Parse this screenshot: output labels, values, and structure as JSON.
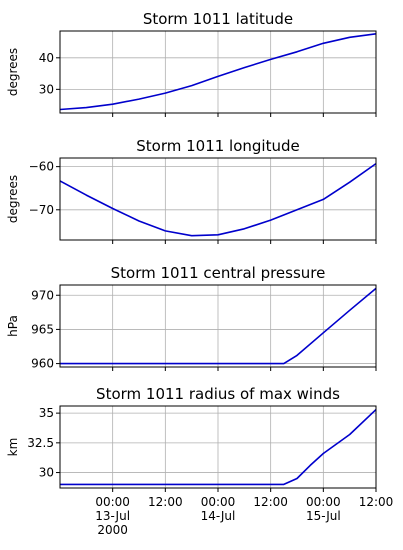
{
  "chart_data": [
    {
      "type": "line",
      "title": "Storm 1011 latitude",
      "ylabel": "degrees",
      "xlim": [
        "2000-07-12 12:00",
        "2000-07-15 12:00"
      ],
      "ylim": [
        22.5,
        48.5
      ],
      "yticks": [
        30,
        40
      ],
      "series": [
        {
          "color": "#0000cc",
          "x": [
            "2000-07-12 12:00",
            "2000-07-12 18:00",
            "2000-07-13 00:00",
            "2000-07-13 06:00",
            "2000-07-13 12:00",
            "2000-07-13 18:00",
            "2000-07-14 00:00",
            "2000-07-14 06:00",
            "2000-07-14 12:00",
            "2000-07-14 18:00",
            "2000-07-15 00:00",
            "2000-07-15 06:00",
            "2000-07-15 12:00"
          ],
          "y": [
            23.6,
            24.2,
            25.3,
            26.9,
            28.8,
            31.2,
            34.1,
            36.9,
            39.5,
            41.9,
            44.6,
            46.5,
            47.6
          ]
        }
      ]
    },
    {
      "type": "line",
      "title": "Storm 1011 longitude",
      "ylabel": "degrees",
      "xlim": [
        "2000-07-12 12:00",
        "2000-07-15 12:00"
      ],
      "ylim": [
        -77,
        -58
      ],
      "yticks": [
        -60,
        -70
      ],
      "series": [
        {
          "color": "#0000cc",
          "x": [
            "2000-07-12 12:00",
            "2000-07-12 18:00",
            "2000-07-13 00:00",
            "2000-07-13 06:00",
            "2000-07-13 12:00",
            "2000-07-13 18:00",
            "2000-07-14 00:00",
            "2000-07-14 06:00",
            "2000-07-14 12:00",
            "2000-07-14 18:00",
            "2000-07-15 00:00",
            "2000-07-15 06:00",
            "2000-07-15 12:00"
          ],
          "y": [
            -63.3,
            -66.6,
            -69.7,
            -72.6,
            -74.9,
            -76.0,
            -75.8,
            -74.4,
            -72.4,
            -70.0,
            -67.6,
            -63.6,
            -59.3
          ]
        }
      ]
    },
    {
      "type": "line",
      "title": "Storm 1011 central pressure",
      "ylabel": "hPa",
      "xlim": [
        "2000-07-12 12:00",
        "2000-07-15 12:00"
      ],
      "ylim": [
        959.5,
        971.5
      ],
      "yticks": [
        960,
        965,
        970
      ],
      "series": [
        {
          "color": "#0000cc",
          "x": [
            "2000-07-12 12:00",
            "2000-07-13 12:00",
            "2000-07-14 12:00",
            "2000-07-14 15:00",
            "2000-07-14 18:00",
            "2000-07-15 00:00",
            "2000-07-15 06:00",
            "2000-07-15 12:00"
          ],
          "y": [
            960,
            960,
            960,
            960,
            961.2,
            964.5,
            967.8,
            971
          ]
        }
      ]
    },
    {
      "type": "line",
      "title": "Storm 1011 radius of max winds",
      "ylabel": "km",
      "xlim": [
        "2000-07-12 12:00",
        "2000-07-15 12:00"
      ],
      "ylim": [
        28.7,
        35.6
      ],
      "yticks": [
        30.0,
        32.5,
        35.0
      ],
      "series": [
        {
          "color": "#0000cc",
          "x": [
            "2000-07-12 12:00",
            "2000-07-13 12:00",
            "2000-07-14 12:00",
            "2000-07-14 15:00",
            "2000-07-14 18:00",
            "2000-07-14 21:00",
            "2000-07-15 00:00",
            "2000-07-15 06:00",
            "2000-07-15 12:00"
          ],
          "y": [
            29.0,
            29.0,
            29.0,
            29.0,
            29.5,
            30.6,
            31.6,
            33.2,
            35.3
          ]
        }
      ]
    }
  ],
  "xaxis": {
    "ticks": [
      {
        "t": "2000-07-13 00:00",
        "lines": [
          "00:00",
          "13-Jul",
          "2000"
        ]
      },
      {
        "t": "2000-07-13 12:00",
        "lines": [
          "12:00"
        ]
      },
      {
        "t": "2000-07-14 00:00",
        "lines": [
          "00:00",
          "14-Jul"
        ]
      },
      {
        "t": "2000-07-14 12:00",
        "lines": [
          "12:00"
        ]
      },
      {
        "t": "2000-07-15 00:00",
        "lines": [
          "00:00",
          "15-Jul"
        ]
      },
      {
        "t": "2000-07-15 12:00",
        "lines": [
          "12:00"
        ]
      }
    ]
  }
}
